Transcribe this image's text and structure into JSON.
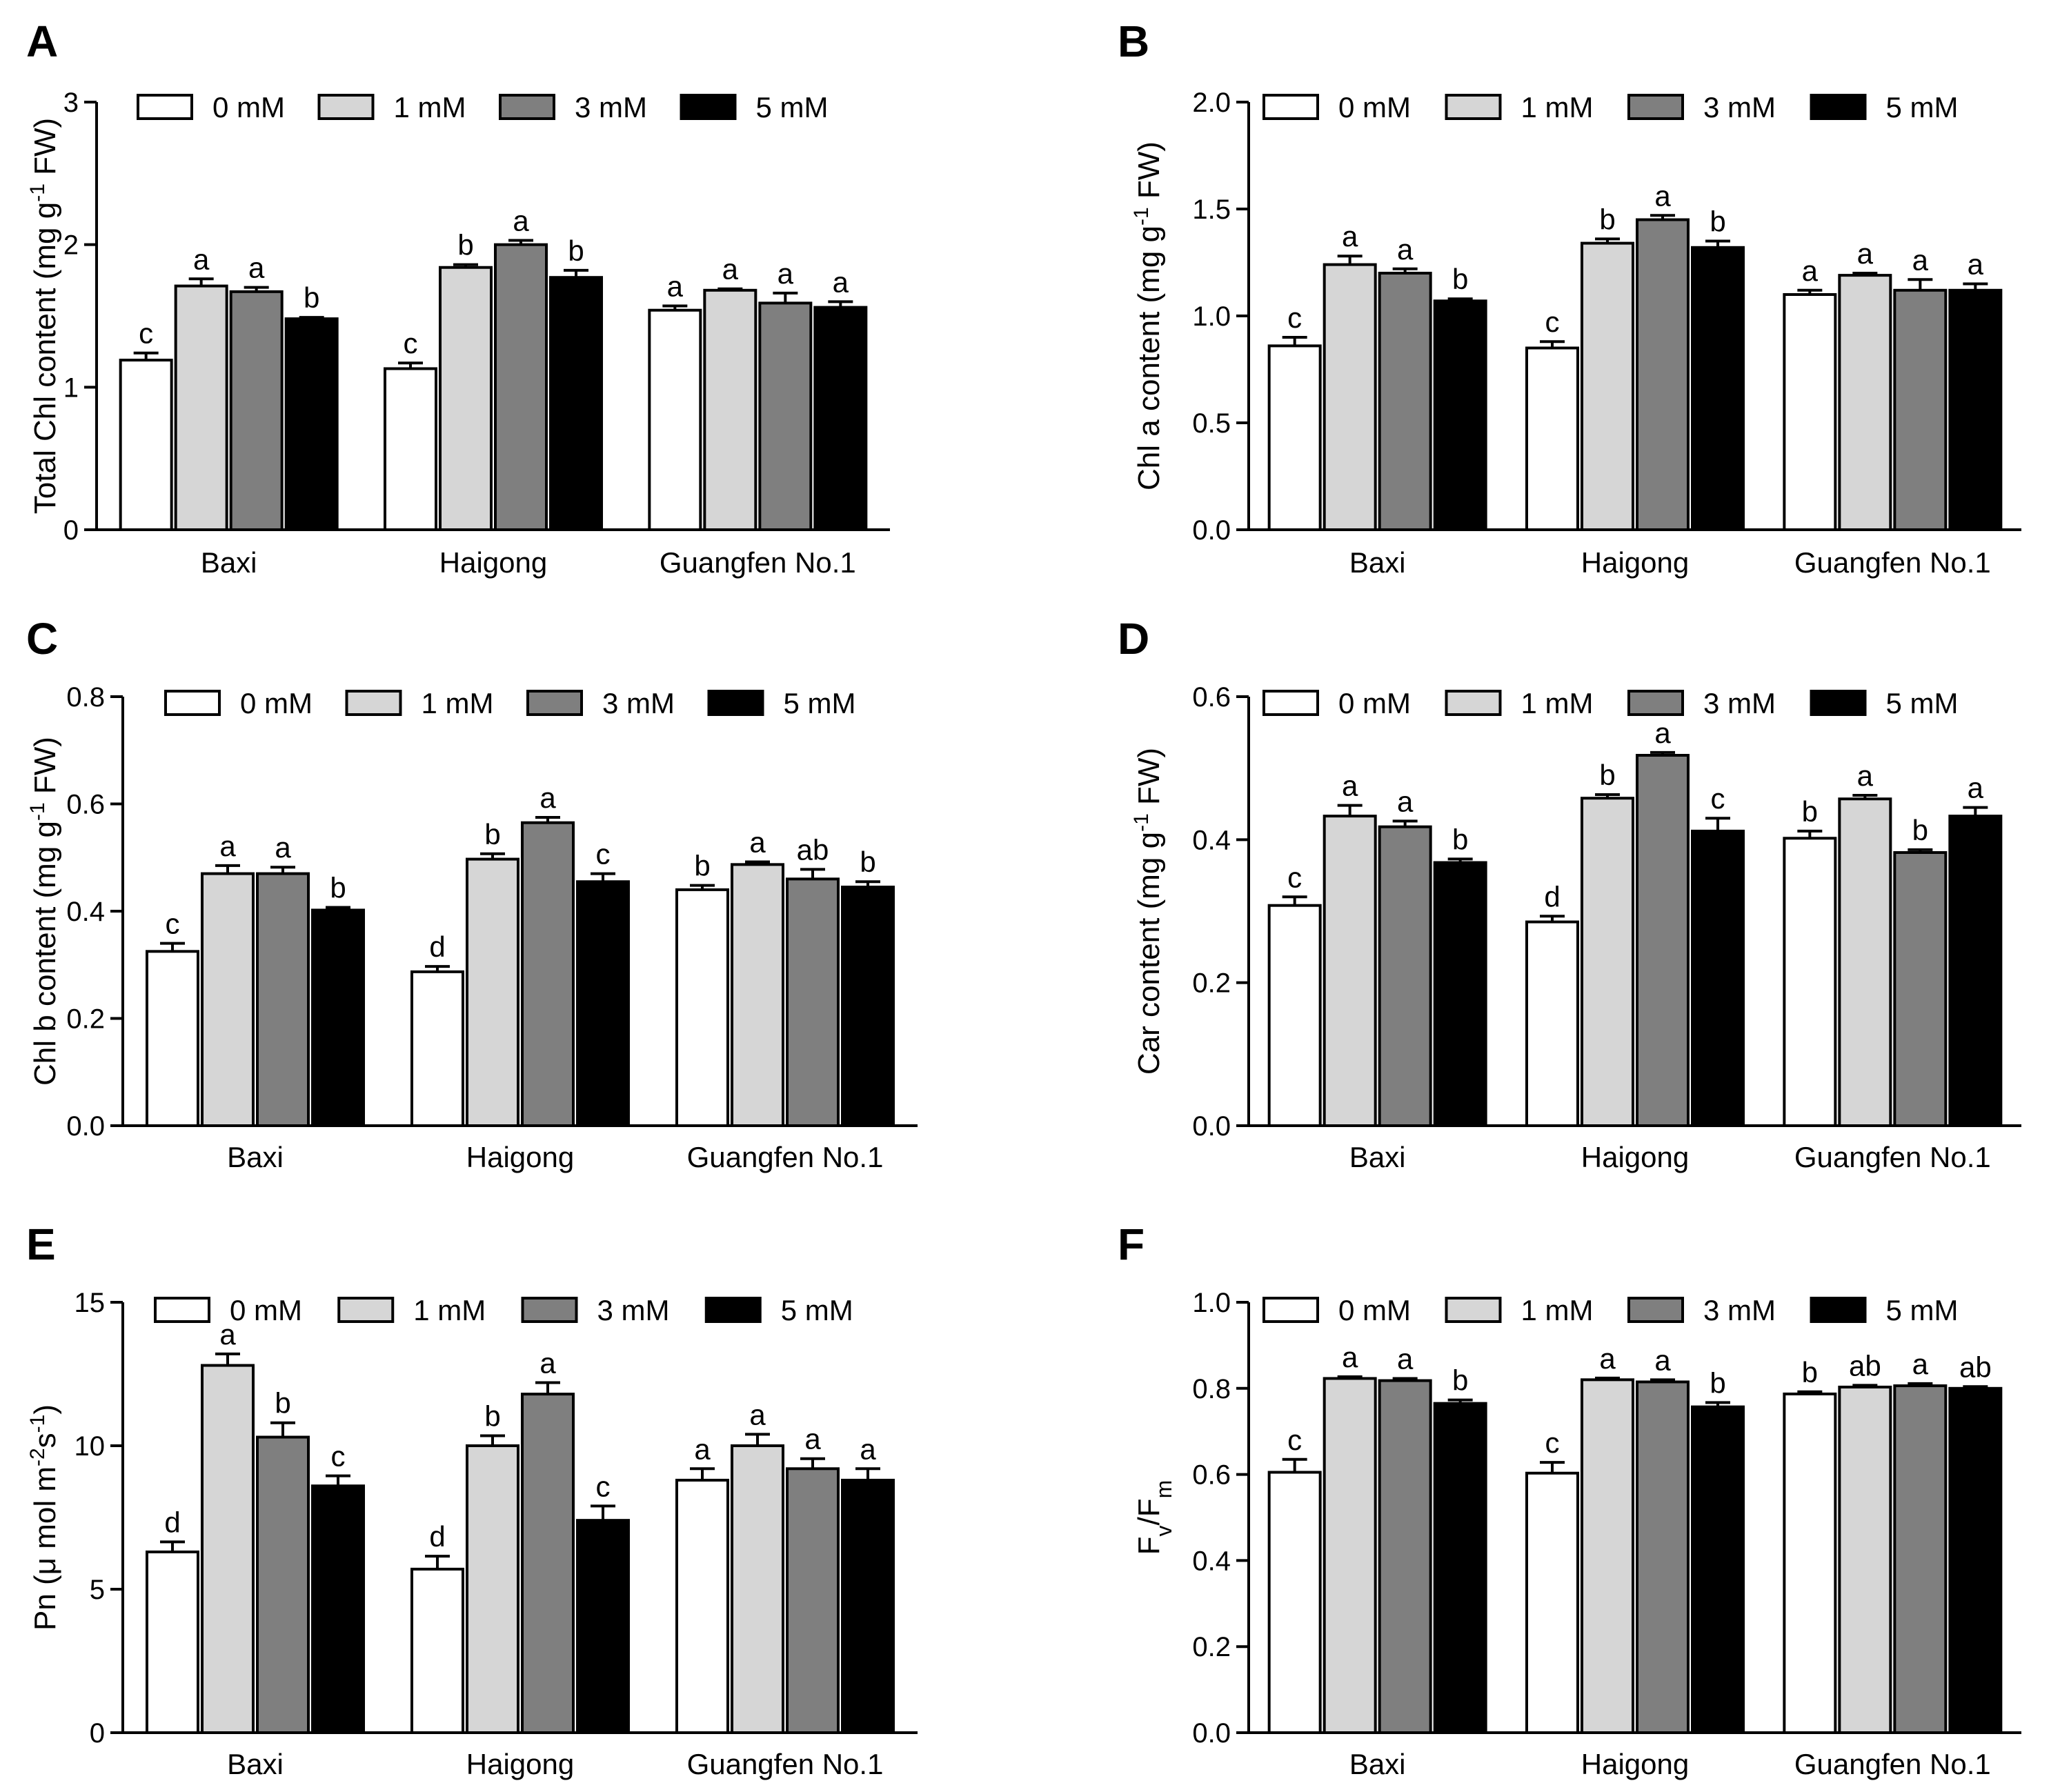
{
  "legend_labels": [
    "0 mM",
    "1 mM",
    "3 mM",
    "5 mM"
  ],
  "series_colors": [
    "#ffffff",
    "#d6d6d6",
    "#7f7f7f",
    "#000000"
  ],
  "chart_data": [
    {
      "panel": "A",
      "type": "bar",
      "categories": [
        "Baxi",
        "Haigong",
        "Guangfen No.1"
      ],
      "ylabel_main": "Total Chl content (mg g",
      "ylabel_sup": "-1",
      "ylabel_end": " FW)",
      "ylim": [
        0,
        3
      ],
      "yticks": [
        0,
        1,
        2,
        3
      ],
      "ytick_labels": [
        "0",
        "1",
        "2",
        "3"
      ],
      "series": [
        {
          "name": "0 mM",
          "values": [
            1.19,
            1.13,
            1.54
          ],
          "errors": [
            0.05,
            0.04,
            0.03
          ],
          "letters": [
            "c",
            "c",
            "a"
          ]
        },
        {
          "name": "1 mM",
          "values": [
            1.71,
            1.84,
            1.68
          ],
          "errors": [
            0.05,
            0.02,
            0.01
          ],
          "letters": [
            "a",
            "b",
            "a"
          ]
        },
        {
          "name": "3 mM",
          "values": [
            1.67,
            2.0,
            1.59
          ],
          "errors": [
            0.03,
            0.03,
            0.07
          ],
          "letters": [
            "a",
            "a",
            "a"
          ]
        },
        {
          "name": "5 mM",
          "values": [
            1.48,
            1.77,
            1.56
          ],
          "errors": [
            0.01,
            0.05,
            0.04
          ],
          "letters": [
            "b",
            "b",
            "a"
          ]
        }
      ]
    },
    {
      "panel": "B",
      "type": "bar",
      "categories": [
        "Baxi",
        "Haigong",
        "Guangfen No.1"
      ],
      "ylabel_main": "Chl a content (mg g",
      "ylabel_sup": "-1",
      "ylabel_end": " FW)",
      "ylim": [
        0,
        2
      ],
      "yticks": [
        0,
        0.5,
        1,
        1.5,
        2
      ],
      "ytick_labels": [
        "0.0",
        "0.5",
        "1.0",
        "1.5",
        "2.0"
      ],
      "series": [
        {
          "name": "0 mM",
          "values": [
            0.86,
            0.85,
            1.1
          ],
          "errors": [
            0.04,
            0.03,
            0.02
          ],
          "letters": [
            "c",
            "c",
            "a"
          ]
        },
        {
          "name": "1 mM",
          "values": [
            1.24,
            1.34,
            1.19
          ],
          "errors": [
            0.04,
            0.02,
            0.01
          ],
          "letters": [
            "a",
            "b",
            "a"
          ]
        },
        {
          "name": "3 mM",
          "values": [
            1.2,
            1.45,
            1.12
          ],
          "errors": [
            0.02,
            0.02,
            0.05
          ],
          "letters": [
            "a",
            "a",
            "a"
          ]
        },
        {
          "name": "5 mM",
          "values": [
            1.07,
            1.32,
            1.12
          ],
          "errors": [
            0.01,
            0.03,
            0.03
          ],
          "letters": [
            "b",
            "b",
            "a"
          ]
        }
      ]
    },
    {
      "panel": "C",
      "type": "bar",
      "categories": [
        "Baxi",
        "Haigong",
        "Guangfen No.1"
      ],
      "ylabel_main": "Chl b content (mg g",
      "ylabel_sup": "-1",
      "ylabel_end": " FW)",
      "ylim": [
        0,
        0.8
      ],
      "yticks": [
        0,
        0.2,
        0.4,
        0.6,
        0.8
      ],
      "ytick_labels": [
        "0.0",
        "0.2",
        "0.4",
        "0.6",
        "0.8"
      ],
      "series": [
        {
          "name": "0 mM",
          "values": [
            0.325,
            0.287,
            0.44
          ],
          "errors": [
            0.015,
            0.01,
            0.008
          ],
          "letters": [
            "c",
            "d",
            "b"
          ]
        },
        {
          "name": "1 mM",
          "values": [
            0.47,
            0.497,
            0.487
          ],
          "errors": [
            0.015,
            0.01,
            0.005
          ],
          "letters": [
            "a",
            "b",
            "a"
          ]
        },
        {
          "name": "3 mM",
          "values": [
            0.47,
            0.565,
            0.46
          ],
          "errors": [
            0.012,
            0.01,
            0.018
          ],
          "letters": [
            "a",
            "a",
            "ab"
          ]
        },
        {
          "name": "5 mM",
          "values": [
            0.402,
            0.455,
            0.445
          ],
          "errors": [
            0.005,
            0.015,
            0.01
          ],
          "letters": [
            "b",
            "c",
            "b"
          ]
        }
      ]
    },
    {
      "panel": "D",
      "type": "bar",
      "categories": [
        "Baxi",
        "Haigong",
        "Guangfen No.1"
      ],
      "ylabel_main": "Car content (mg g",
      "ylabel_sup": "-1",
      "ylabel_end": " FW)",
      "ylim": [
        0,
        0.6
      ],
      "yticks": [
        0,
        0.2,
        0.4,
        0.6
      ],
      "ytick_labels": [
        "0.0",
        "0.2",
        "0.4",
        "0.6"
      ],
      "series": [
        {
          "name": "0 mM",
          "values": [
            0.308,
            0.285,
            0.402
          ],
          "errors": [
            0.012,
            0.008,
            0.01
          ],
          "letters": [
            "c",
            "d",
            "b"
          ]
        },
        {
          "name": "1 mM",
          "values": [
            0.433,
            0.458,
            0.457
          ],
          "errors": [
            0.015,
            0.005,
            0.005
          ],
          "letters": [
            "a",
            "b",
            "a"
          ]
        },
        {
          "name": "3 mM",
          "values": [
            0.418,
            0.518,
            0.382
          ],
          "errors": [
            0.008,
            0.004,
            0.004
          ],
          "letters": [
            "a",
            "a",
            "b"
          ]
        },
        {
          "name": "5 mM",
          "values": [
            0.368,
            0.412,
            0.433
          ],
          "errors": [
            0.005,
            0.018,
            0.012
          ],
          "letters": [
            "b",
            "c",
            "a"
          ]
        }
      ]
    },
    {
      "panel": "E",
      "type": "bar",
      "categories": [
        "Baxi",
        "Haigong",
        "Guangfen No.1"
      ],
      "ylabel_main": "Pn (μ mol m",
      "ylabel_sup": "-2",
      "ylabel_mid": "s",
      "ylabel_sup2": "-1",
      "ylabel_end": ")",
      "ylim": [
        0,
        15
      ],
      "yticks": [
        0,
        5,
        10,
        15
      ],
      "ytick_labels": [
        "0",
        "5",
        "10",
        "15"
      ],
      "series": [
        {
          "name": "0 mM",
          "values": [
            6.3,
            5.7,
            8.8
          ],
          "errors": [
            0.35,
            0.45,
            0.4
          ],
          "letters": [
            "d",
            "d",
            "a"
          ]
        },
        {
          "name": "1 mM",
          "values": [
            12.8,
            10.0,
            10.0
          ],
          "errors": [
            0.4,
            0.35,
            0.4
          ],
          "letters": [
            "a",
            "b",
            "a"
          ]
        },
        {
          "name": "3 mM",
          "values": [
            10.3,
            11.8,
            9.2
          ],
          "errors": [
            0.5,
            0.4,
            0.35
          ],
          "letters": [
            "b",
            "a",
            "a"
          ]
        },
        {
          "name": "5 mM",
          "values": [
            8.6,
            7.4,
            8.8
          ],
          "errors": [
            0.35,
            0.5,
            0.4
          ],
          "letters": [
            "c",
            "c",
            "a"
          ]
        }
      ]
    },
    {
      "panel": "F",
      "type": "bar",
      "categories": [
        "Baxi",
        "Haigong",
        "Guangfen No.1"
      ],
      "ylabel_main": "F",
      "ylabel_sub": "v",
      "ylabel_mid": "/F",
      "ylabel_sub2": "m",
      "ylim": [
        0,
        1
      ],
      "yticks": [
        0,
        0.2,
        0.4,
        0.6,
        0.8,
        1
      ],
      "ytick_labels": [
        "0.0",
        "0.2",
        "0.4",
        "0.6",
        "0.8",
        "1.0"
      ],
      "series": [
        {
          "name": "0 mM",
          "values": [
            0.605,
            0.603,
            0.787
          ],
          "errors": [
            0.03,
            0.025,
            0.005
          ],
          "letters": [
            "c",
            "c",
            "b"
          ]
        },
        {
          "name": "1 mM",
          "values": [
            0.823,
            0.82,
            0.803
          ],
          "errors": [
            0.004,
            0.004,
            0.004
          ],
          "letters": [
            "a",
            "a",
            "ab"
          ]
        },
        {
          "name": "3 mM",
          "values": [
            0.818,
            0.815,
            0.806
          ],
          "errors": [
            0.005,
            0.005,
            0.005
          ],
          "letters": [
            "a",
            "a",
            "a"
          ]
        },
        {
          "name": "5 mM",
          "values": [
            0.765,
            0.757,
            0.8
          ],
          "errors": [
            0.008,
            0.01,
            0.004
          ],
          "letters": [
            "b",
            "b",
            "ab"
          ]
        }
      ]
    }
  ]
}
